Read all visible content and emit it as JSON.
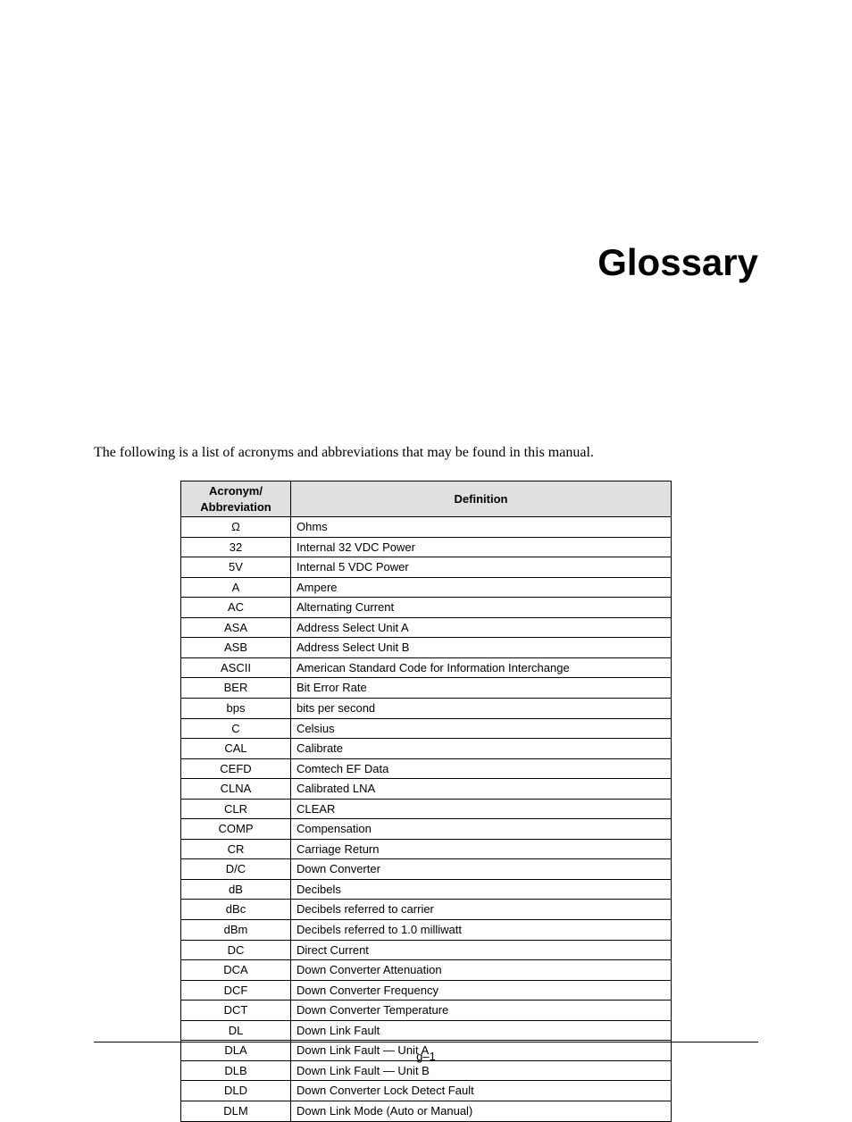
{
  "title": "Glossary",
  "intro": "The following is a list of acronyms and abbreviations that may be found in this manual.",
  "table": {
    "header_ack_line1": "Acronym/",
    "header_ack_line2": "Abbreviation",
    "header_def": "Definition",
    "header_bg": "#e0e0e0",
    "border_color": "#000000",
    "font_size": 13,
    "rows": [
      {
        "ack": "Ω",
        "def": "Ohms"
      },
      {
        "ack": "32",
        "def": "Internal 32 VDC Power"
      },
      {
        "ack": "5V",
        "def": "Internal 5 VDC Power"
      },
      {
        "ack": "A",
        "def": "Ampere"
      },
      {
        "ack": "AC",
        "def": "Alternating Current"
      },
      {
        "ack": "ASA",
        "def": "Address Select Unit A"
      },
      {
        "ack": "ASB",
        "def": "Address Select Unit B"
      },
      {
        "ack": "ASCII",
        "def": "American Standard Code for Information Interchange"
      },
      {
        "ack": "BER",
        "def": "Bit Error Rate"
      },
      {
        "ack": "bps",
        "def": "bits per second"
      },
      {
        "ack": "C",
        "def": "Celsius"
      },
      {
        "ack": "CAL",
        "def": "Calibrate"
      },
      {
        "ack": "CEFD",
        "def": "Comtech EF Data"
      },
      {
        "ack": "CLNA",
        "def": "Calibrated LNA"
      },
      {
        "ack": "CLR",
        "def": "CLEAR"
      },
      {
        "ack": "COMP",
        "def": "Compensation"
      },
      {
        "ack": "CR",
        "def": "Carriage Return"
      },
      {
        "ack": "D/C",
        "def": "Down Converter"
      },
      {
        "ack": "dB",
        "def": "Decibels"
      },
      {
        "ack": "dBc",
        "def": "Decibels referred to carrier"
      },
      {
        "ack": "dBm",
        "def": "Decibels referred to 1.0 milliwatt"
      },
      {
        "ack": "DC",
        "def": "Direct Current"
      },
      {
        "ack": "DCA",
        "def": "Down Converter Attenuation"
      },
      {
        "ack": "DCF",
        "def": "Down Converter Frequency"
      },
      {
        "ack": "DCT",
        "def": "Down Converter Temperature"
      },
      {
        "ack": "DL",
        "def": "Down Link Fault"
      },
      {
        "ack": "DLA",
        "def": "Down Link Fault — Unit A"
      },
      {
        "ack": "DLB",
        "def": "Down Link Fault — Unit B"
      },
      {
        "ack": "DLD",
        "def": "Down Converter Lock Detect Fault"
      },
      {
        "ack": "DLM",
        "def": "Down Link Mode (Auto or Manual)"
      }
    ]
  },
  "footer": "g–1"
}
